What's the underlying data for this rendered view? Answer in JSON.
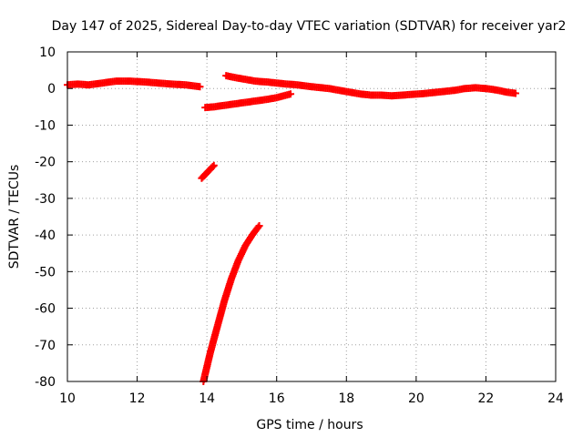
{
  "chart_data": {
    "type": "scatter",
    "title": "Day 147 of 2025, Sidereal Day-to-day VTEC variation (SDTVAR) for receiver yar2",
    "xlabel": "GPS time / hours",
    "ylabel": "SDTVAR / TECUs",
    "xlim": [
      10,
      24
    ],
    "ylim": [
      -80,
      10
    ],
    "xticks": [
      10,
      12,
      14,
      16,
      18,
      20,
      22,
      24
    ],
    "yticks": [
      10,
      0,
      -10,
      -20,
      -30,
      -40,
      -50,
      -60,
      -70,
      -80
    ],
    "xtick_labels": [
      "10",
      "12",
      "14",
      "16",
      "18",
      "20",
      "22",
      "24"
    ],
    "ytick_labels": [
      "10",
      "0",
      "-10",
      "-20",
      "-30",
      "-40",
      "-50",
      "-60",
      "-70",
      "-80"
    ],
    "grid": true,
    "marker": "plus",
    "color": "#ff0000",
    "series": [
      {
        "segments": [
          {
            "x": [
              10.0,
              10.3,
              10.6,
              11.0,
              11.4,
              11.8,
              12.2,
              12.6,
              13.0,
              13.4,
              13.8
            ],
            "y": [
              1.0,
              1.2,
              1.0,
              1.5,
              2.0,
              2.0,
              1.8,
              1.5,
              1.2,
              1.0,
              0.5
            ]
          },
          {
            "x": [
              13.95,
              14.2,
              14.5,
              14.8,
              15.1,
              15.4,
              15.7,
              16.0,
              16.2,
              16.4
            ],
            "y": [
              -5.2,
              -5.0,
              -4.6,
              -4.2,
              -3.8,
              -3.4,
              -3.0,
              -2.5,
              -2.0,
              -1.5
            ]
          },
          {
            "x": [
              14.55,
              14.8,
              15.1,
              15.4,
              15.7,
              16.0,
              16.3,
              16.6,
              16.9,
              17.2,
              17.5,
              17.8,
              18.1,
              18.4,
              18.7,
              19.0,
              19.3,
              19.6,
              19.9,
              20.2,
              20.5,
              20.8,
              21.1,
              21.4,
              21.7,
              22.0,
              22.3,
              22.6,
              22.85
            ],
            "y": [
              3.5,
              3.0,
              2.5,
              2.0,
              1.8,
              1.5,
              1.2,
              1.0,
              0.6,
              0.3,
              0.0,
              -0.5,
              -1.0,
              -1.5,
              -1.8,
              -1.8,
              -2.0,
              -1.8,
              -1.6,
              -1.4,
              -1.1,
              -0.8,
              -0.5,
              0.0,
              0.2,
              0.0,
              -0.4,
              -1.0,
              -1.3
            ]
          },
          {
            "x": [
              13.85,
              14.0,
              14.2
            ],
            "y": [
              -24.5,
              -23.0,
              -21.0
            ]
          },
          {
            "x": [
              13.9,
              14.1,
              14.3,
              14.5,
              14.7,
              14.9,
              15.1,
              15.3,
              15.5
            ],
            "y": [
              -80,
              -72,
              -65,
              -58,
              -52,
              -47,
              -43,
              -40,
              -37.5
            ]
          }
        ]
      }
    ]
  }
}
